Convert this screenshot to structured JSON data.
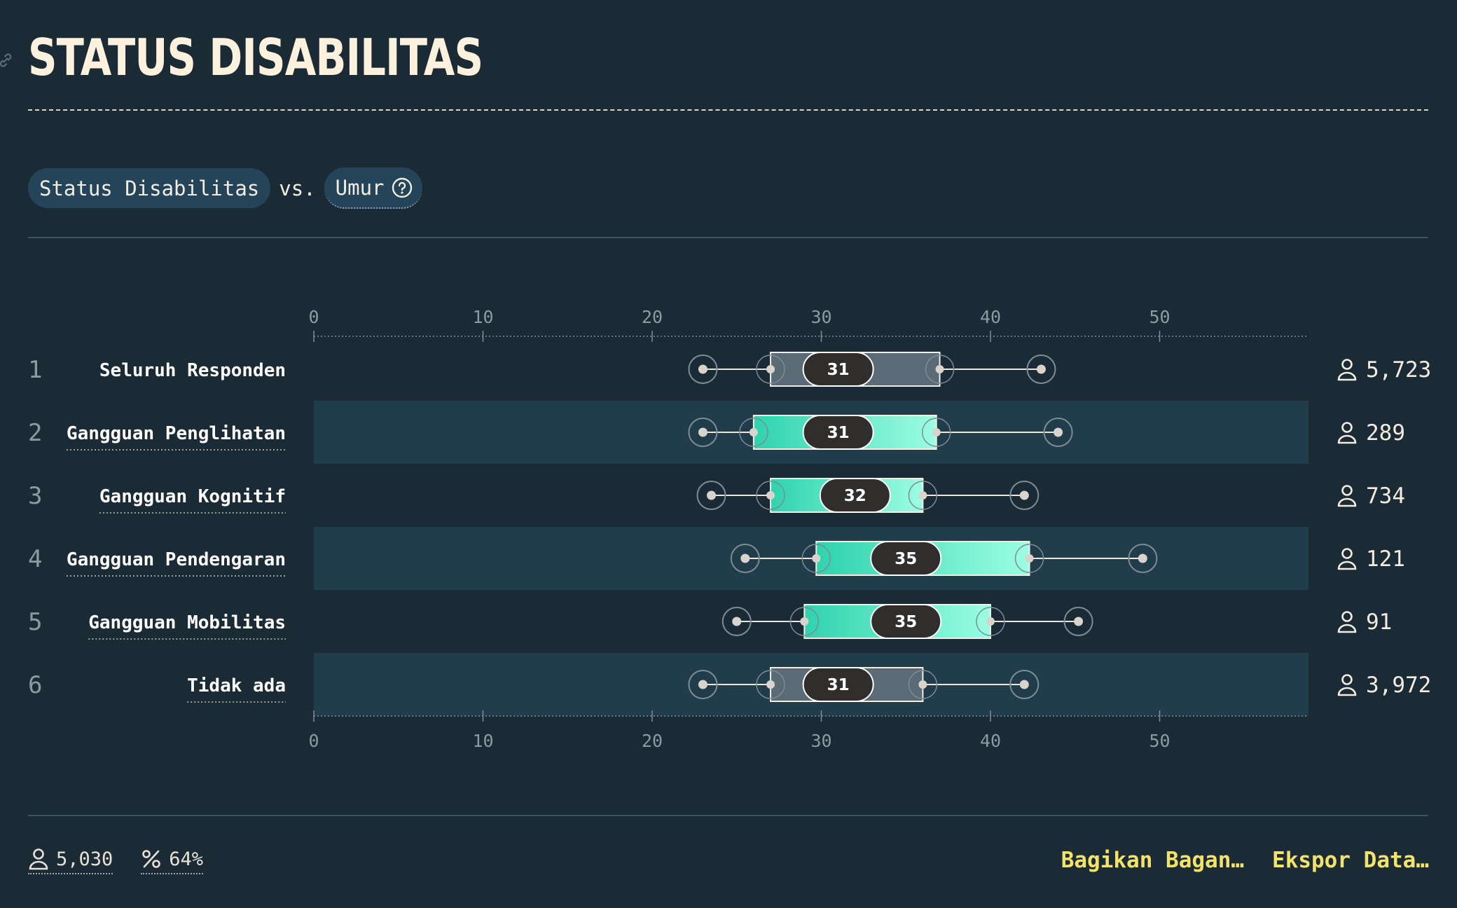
{
  "header": {
    "title": "STATUS DISABILITAS"
  },
  "filters": {
    "primary": "Status Disabilitas",
    "vs": "vs.",
    "secondary": "Umur"
  },
  "chart_data": {
    "type": "boxplot",
    "x_ticks": [
      0,
      10,
      20,
      30,
      40,
      50
    ],
    "xlim": [
      0,
      58.8
    ],
    "rows": [
      {
        "index": "1",
        "label": "Seluruh Responden",
        "min": 23,
        "q1": 27,
        "median": 31,
        "q3": 37,
        "max": 43,
        "count": "5,723",
        "style": "neutral",
        "underline": false
      },
      {
        "index": "2",
        "label": "Gangguan Penglihatan",
        "min": 23,
        "q1": 26,
        "median": 31,
        "q3": 36.8,
        "max": 44,
        "count": "289",
        "style": "accent",
        "underline": true
      },
      {
        "index": "3",
        "label": "Gangguan Kognitif",
        "min": 23.5,
        "q1": 27,
        "median": 32,
        "q3": 36,
        "max": 42,
        "count": "734",
        "style": "accent",
        "underline": true
      },
      {
        "index": "4",
        "label": "Gangguan Pendengaran",
        "min": 25.5,
        "q1": 29.7,
        "median": 35,
        "q3": 42.3,
        "max": 49,
        "count": "121",
        "style": "accent",
        "underline": true
      },
      {
        "index": "5",
        "label": "Gangguan Mobilitas",
        "min": 25,
        "q1": 29,
        "median": 35,
        "q3": 40,
        "max": 45.2,
        "count": "91",
        "style": "accent",
        "underline": true
      },
      {
        "index": "6",
        "label": "Tidak ada",
        "min": 23,
        "q1": 27,
        "median": 31,
        "q3": 36,
        "max": 42,
        "count": "3,972",
        "style": "neutral",
        "underline": true
      }
    ]
  },
  "footer": {
    "respondents": "5,030",
    "percent": "64%",
    "share_label": "Bagikan Bagan…",
    "export_label": "Ekspor Data…"
  },
  "colors": {
    "background": "#1b2b36",
    "band": "#213c4b",
    "accent_from": "#2fd3ae",
    "accent_to": "#9cfde2",
    "neutral_box": "#5a6b76",
    "link": "#f5e26a"
  }
}
